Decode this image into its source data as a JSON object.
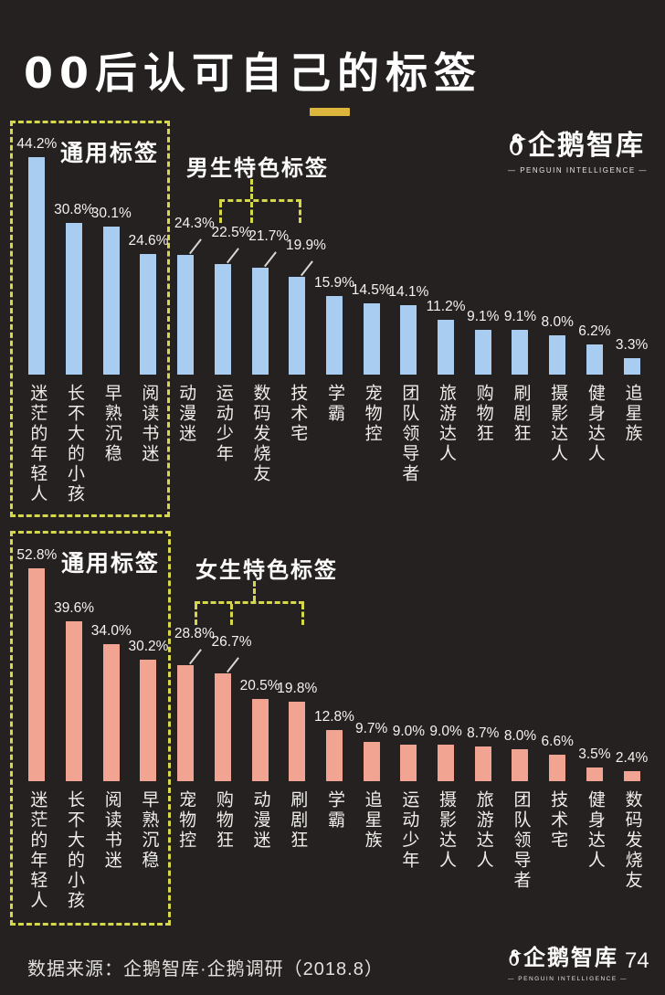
{
  "title": "00后认可自己的标签",
  "logo": {
    "cn": "企鹅智库",
    "en": "— PENGUIN INTELLIGENCE —"
  },
  "footer": {
    "source": "数据来源：企鹅智库·企鹅调研（2018.8）",
    "page_number": "74"
  },
  "colors": {
    "background": "#242120",
    "bar_blue": "#a9cdf0",
    "bar_pink": "#f2a492",
    "dashed_yellow": "#d6d84c",
    "accent_gold": "#dcb63c",
    "text": "#f2f0ec"
  },
  "chart_data": [
    {
      "type": "bar",
      "title": "00后认可自己的标签（男生）",
      "group_label": "通用标签",
      "feature_label": "男生特色标签",
      "bar_color": "#a9cdf0",
      "unit": "%",
      "xlabel": "",
      "ylabel": "",
      "ylim": [
        0,
        50
      ],
      "grid": false,
      "legend": "none",
      "categories": [
        "迷茫的年轻人",
        "长不大的小孩",
        "早熟沉稳",
        "阅读书迷",
        "动漫迷",
        "运动少年",
        "数码发烧友",
        "技术宅",
        "学霸",
        "宠物控",
        "团队领导者",
        "旅游达人",
        "购物狂",
        "刷剧狂",
        "摄影达人",
        "健身达人",
        "追星族"
      ],
      "values": [
        44.2,
        30.8,
        30.1,
        24.6,
        24.3,
        22.5,
        21.7,
        19.9,
        15.9,
        14.5,
        14.1,
        11.2,
        9.1,
        9.1,
        8.0,
        6.2,
        3.3
      ],
      "leader_indices": [
        4,
        5,
        6,
        7
      ]
    },
    {
      "type": "bar",
      "title": "00后认可自己的标签（女生）",
      "group_label": "通用标签",
      "feature_label": "女生特色标签",
      "bar_color": "#f2a492",
      "unit": "%",
      "xlabel": "",
      "ylabel": "",
      "ylim": [
        0,
        60
      ],
      "grid": false,
      "legend": "none",
      "categories": [
        "迷茫的年轻人",
        "长不大的小孩",
        "阅读书迷",
        "早熟沉稳",
        "宠物控",
        "购物狂",
        "动漫迷",
        "刷剧狂",
        "学霸",
        "追星族",
        "运动少年",
        "摄影达人",
        "旅游达人",
        "团队领导者",
        "技术宅",
        "健身达人",
        "数码发烧友"
      ],
      "values": [
        52.8,
        39.6,
        34.0,
        30.2,
        28.8,
        26.7,
        20.5,
        19.8,
        12.8,
        9.7,
        9.0,
        9.0,
        8.7,
        8.0,
        6.6,
        3.5,
        2.4
      ],
      "leader_indices": [
        4,
        5
      ]
    }
  ]
}
